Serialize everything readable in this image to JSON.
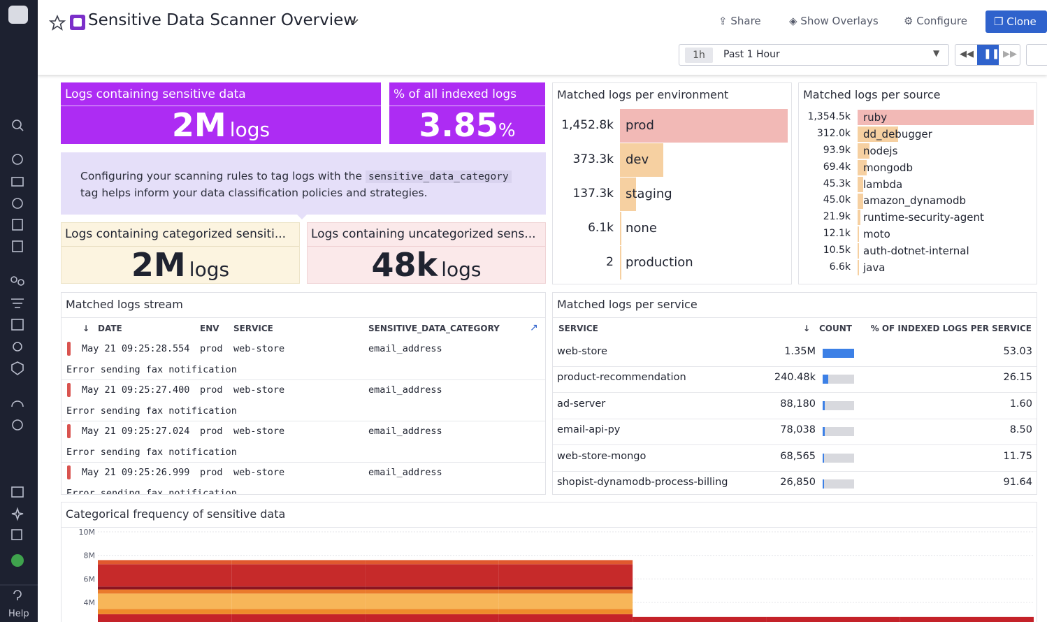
{
  "header": {
    "title": "Sensitive Data Scanner Overview",
    "share": "Share",
    "overlays": "Show Overlays",
    "configure": "Configure",
    "clone": "Clone",
    "time_short": "1h",
    "time_range": "Past 1 Hour"
  },
  "sidebar": {
    "help": "Help"
  },
  "widgets": {
    "sensitive_logs": {
      "title": "Logs containing sensitive data",
      "value": "2M",
      "unit": "logs"
    },
    "percent_indexed": {
      "title": "% of all indexed logs",
      "value": "3.85",
      "unit": "%"
    },
    "note": {
      "text_before": "Configuring your scanning rules to tag logs with the",
      "code": "sensitive_data_category",
      "text_after": "tag helps inform your data classification policies and strategies."
    },
    "categorized": {
      "title": "Logs containing categorized sensiti...",
      "value": "2M",
      "unit": "logs"
    },
    "uncategorized": {
      "title": "Logs containing uncategorized sens...",
      "value": "48k",
      "unit": "logs"
    },
    "per_environment": {
      "title": "Matched logs per environment",
      "categories": [
        "prod",
        "dev",
        "staging",
        "none",
        "production"
      ],
      "values": [
        1452800,
        373300,
        137300,
        6100,
        2
      ],
      "value_labels": [
        "1,452.8k",
        "373.3k",
        "137.3k",
        "6.1k",
        "2"
      ]
    },
    "per_source": {
      "title": "Matched logs per source",
      "categories": [
        "ruby",
        "dd_debugger",
        "nodejs",
        "mongodb",
        "lambda",
        "amazon_dynamodb",
        "runtime-security-agent",
        "moto",
        "auth-dotnet-internal",
        "java"
      ],
      "values": [
        1354500,
        312000,
        93900,
        69400,
        45300,
        45000,
        21900,
        12100,
        10500,
        6600
      ],
      "value_labels": [
        "1,354.5k",
        "312.0k",
        "93.9k",
        "69.4k",
        "45.3k",
        "45.0k",
        "21.9k",
        "12.1k",
        "10.5k",
        "6.6k"
      ]
    },
    "stream": {
      "title": "Matched logs stream",
      "columns": [
        "DATE",
        "ENV",
        "SERVICE",
        "SENSITIVE_DATA_CATEGORY"
      ],
      "rows": [
        {
          "date": "May 21 09:25:28.554",
          "env": "prod",
          "service": "web-store",
          "category": "email_address",
          "message": "Error sending fax notification"
        },
        {
          "date": "May 21 09:25:27.400",
          "env": "prod",
          "service": "web-store",
          "category": "email_address",
          "message": "Error sending fax notification"
        },
        {
          "date": "May 21 09:25:27.024",
          "env": "prod",
          "service": "web-store",
          "category": "email_address",
          "message": "Error sending fax notification"
        },
        {
          "date": "May 21 09:25:26.999",
          "env": "prod",
          "service": "web-store",
          "category": "email_address",
          "message": "Error sending fax notification"
        }
      ]
    },
    "per_service": {
      "title": "Matched logs per service",
      "columns": [
        "SERVICE",
        "COUNT",
        "% OF INDEXED LOGS PER SERVICE"
      ],
      "services": [
        "web-store",
        "product-recommendation",
        "ad-server",
        "email-api-py",
        "web-store-mongo",
        "shopist-dynamodb-process-billing"
      ],
      "counts": [
        1350000,
        240480,
        88180,
        78038,
        68565,
        26850
      ],
      "count_labels": [
        "1.35M",
        "240.48k",
        "88,180",
        "78,038",
        "68,565",
        "26,850"
      ],
      "percents": [
        "53.03",
        "26.15",
        "1.60",
        "8.50",
        "11.75",
        "91.64"
      ]
    }
  },
  "chart_data": {
    "type": "bar",
    "stacked": true,
    "title": "Categorical frequency of sensitive data",
    "categories": [
      null,
      null,
      null,
      null,
      null,
      null,
      null
    ],
    "series": [
      {
        "color": "#c42229",
        "values": [
          3000000,
          3000000,
          3000000,
          3000000,
          2760000,
          2760000,
          2760000
        ]
      },
      {
        "color": "#ee8a2a",
        "values": [
          450000,
          450000,
          450000,
          450000,
          0,
          0,
          0
        ]
      },
      {
        "color": "#f7b659",
        "values": [
          1300000,
          1300000,
          1300000,
          1300000,
          0,
          0,
          0
        ]
      },
      {
        "color": "#ea7a2c",
        "values": [
          350000,
          350000,
          350000,
          350000,
          0,
          0,
          0
        ]
      },
      {
        "color": "#8c1420",
        "values": [
          250000,
          250000,
          250000,
          250000,
          0,
          0,
          0
        ]
      },
      {
        "color": "#c62a2a",
        "values": [
          1900000,
          1900000,
          1900000,
          1900000,
          0,
          0,
          0
        ]
      },
      {
        "color": "#e0582e",
        "values": [
          350000,
          350000,
          350000,
          350000,
          0,
          0,
          0
        ]
      }
    ],
    "ylim": [
      0,
      10000000
    ],
    "yticks": [
      {
        "value": 10000000,
        "label": "10M"
      },
      {
        "value": 8000000,
        "label": "8M"
      },
      {
        "value": 6000000,
        "label": "6M"
      },
      {
        "value": 4000000,
        "label": "4M"
      }
    ],
    "grid": true
  }
}
